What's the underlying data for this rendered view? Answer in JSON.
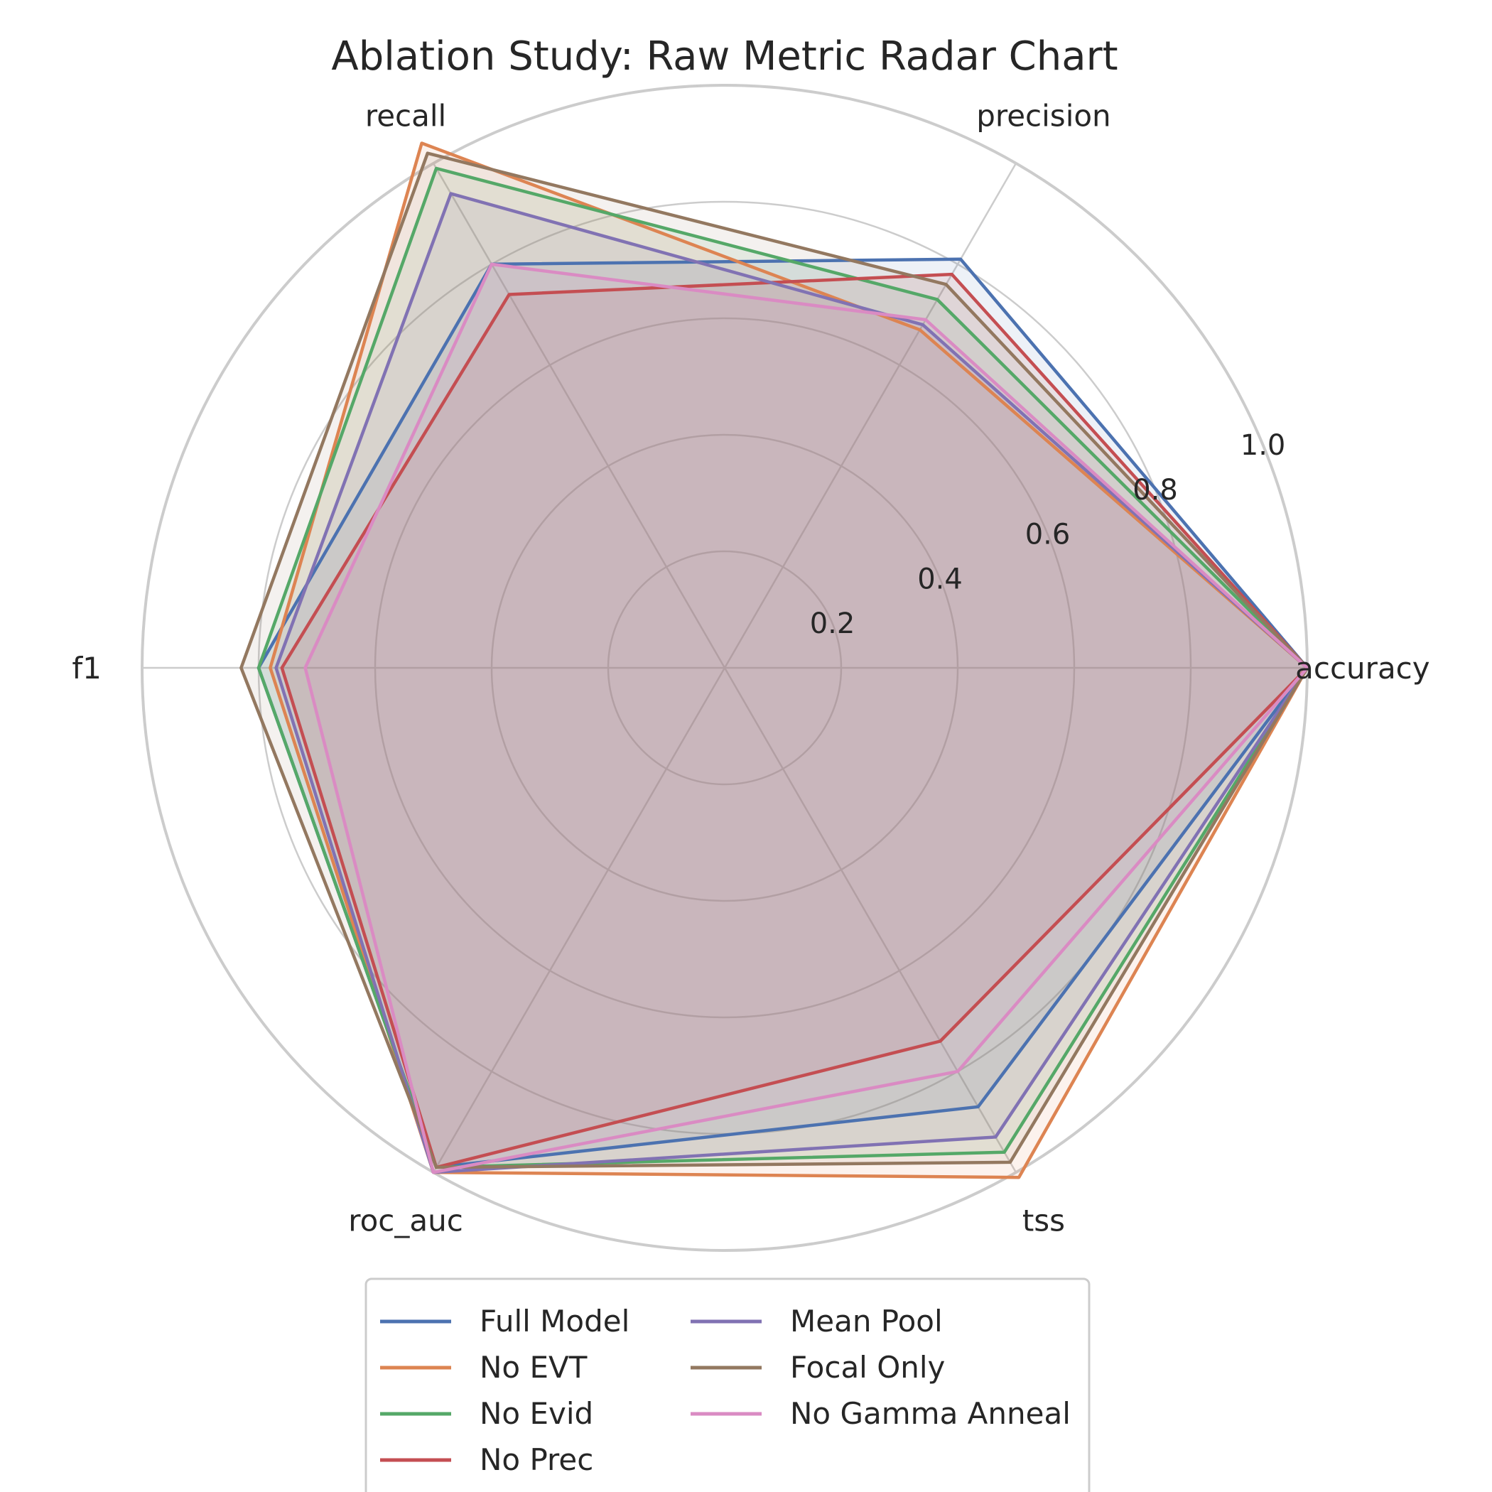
{
  "chart_data": {
    "type": "radar",
    "title": "Ablation Study: Raw Metric Radar Chart",
    "axes": [
      "accuracy",
      "precision",
      "recall",
      "f1",
      "roc_auc",
      "tss"
    ],
    "rlim": [
      0,
      1.0
    ],
    "rticks": [
      0.2,
      0.4,
      0.6,
      0.8,
      1.0
    ],
    "rtick_labels": [
      "0.2",
      "0.4",
      "0.6",
      "0.8",
      "1.0"
    ],
    "grid": true,
    "fill": true,
    "legend": {
      "placement": "bottom-center",
      "columns": 2
    },
    "series": [
      {
        "name": "Full Model",
        "color": "#4c72b0",
        "values": [
          1.0,
          0.81,
          0.8,
          0.8,
          0.99,
          0.87
        ]
      },
      {
        "name": "No EVT",
        "color": "#dd8452",
        "values": [
          1.0,
          0.67,
          1.04,
          0.78,
          1.0,
          1.01
        ]
      },
      {
        "name": "No Evid",
        "color": "#55a868",
        "values": [
          1.0,
          0.73,
          0.99,
          0.8,
          0.99,
          0.96
        ]
      },
      {
        "name": "No Prec",
        "color": "#c44e52",
        "values": [
          1.0,
          0.78,
          0.74,
          0.76,
          0.99,
          0.74
        ]
      },
      {
        "name": "Mean Pool",
        "color": "#8172b3",
        "values": [
          1.0,
          0.68,
          0.94,
          0.77,
          1.0,
          0.93
        ]
      },
      {
        "name": "Focal Only",
        "color": "#937860",
        "values": [
          1.0,
          0.76,
          1.02,
          0.83,
          0.99,
          0.98
        ]
      },
      {
        "name": "No Gamma Anneal",
        "color": "#da8bc3",
        "values": [
          1.0,
          0.69,
          0.8,
          0.72,
          1.0,
          0.8
        ]
      }
    ]
  }
}
